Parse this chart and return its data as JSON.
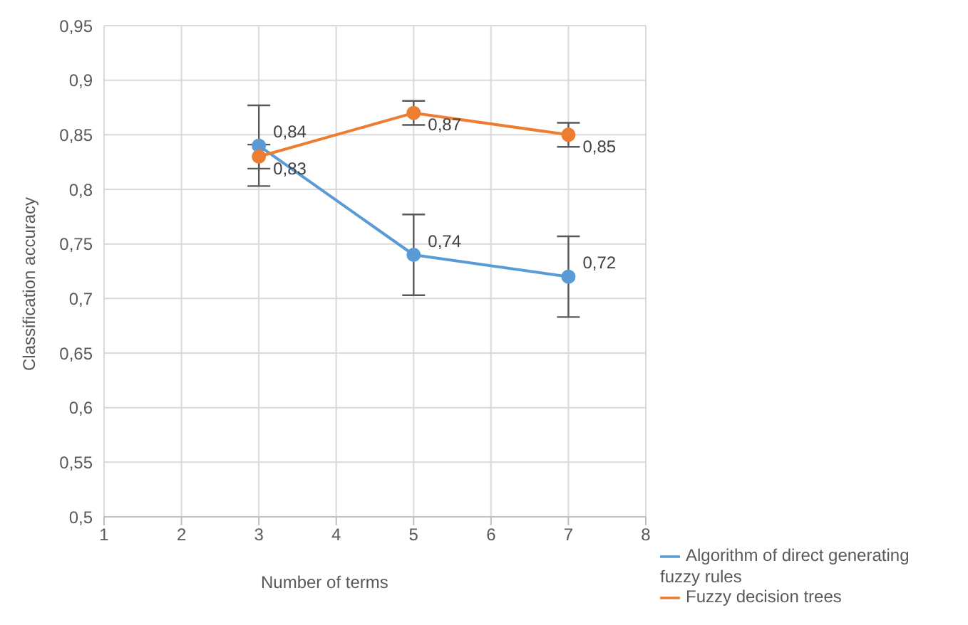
{
  "chart_data": {
    "type": "line",
    "xlabel": "Number of terms",
    "ylabel": "Classification accuracy",
    "x": [
      3,
      5,
      7
    ],
    "series": [
      {
        "name": "Algorithm of direct generating fuzzy rules",
        "color": "#5b9bd5",
        "values": [
          0.84,
          0.74,
          0.72
        ],
        "errors": [
          0.037,
          0.037,
          0.037
        ],
        "value_labels": [
          "0,84",
          "0,74",
          "0,72"
        ]
      },
      {
        "name": "Fuzzy decision trees",
        "color": "#ed7d31",
        "values": [
          0.83,
          0.87,
          0.85
        ],
        "errors": [
          0.011,
          0.011,
          0.011
        ],
        "value_labels": [
          "0,83",
          "0,87",
          "0,85"
        ]
      }
    ],
    "xlim": [
      1,
      8
    ],
    "xticks": [
      1,
      2,
      3,
      4,
      5,
      6,
      7,
      8
    ],
    "ylim": [
      0.5,
      0.95
    ],
    "yticks": [
      {
        "value": 0.5,
        "label": "0,5"
      },
      {
        "value": 0.55,
        "label": "0,55"
      },
      {
        "value": 0.6,
        "label": "0,6"
      },
      {
        "value": 0.65,
        "label": "0,65"
      },
      {
        "value": 0.7,
        "label": "0,7"
      },
      {
        "value": 0.75,
        "label": "0,75"
      },
      {
        "value": 0.8,
        "label": "0,8"
      },
      {
        "value": 0.85,
        "label": "0,85"
      },
      {
        "value": 0.9,
        "label": "0,9"
      },
      {
        "value": 0.95,
        "label": "0,95"
      }
    ],
    "grid": true,
    "legend": "bottom right",
    "marker": "circle",
    "line_style": "solid"
  }
}
